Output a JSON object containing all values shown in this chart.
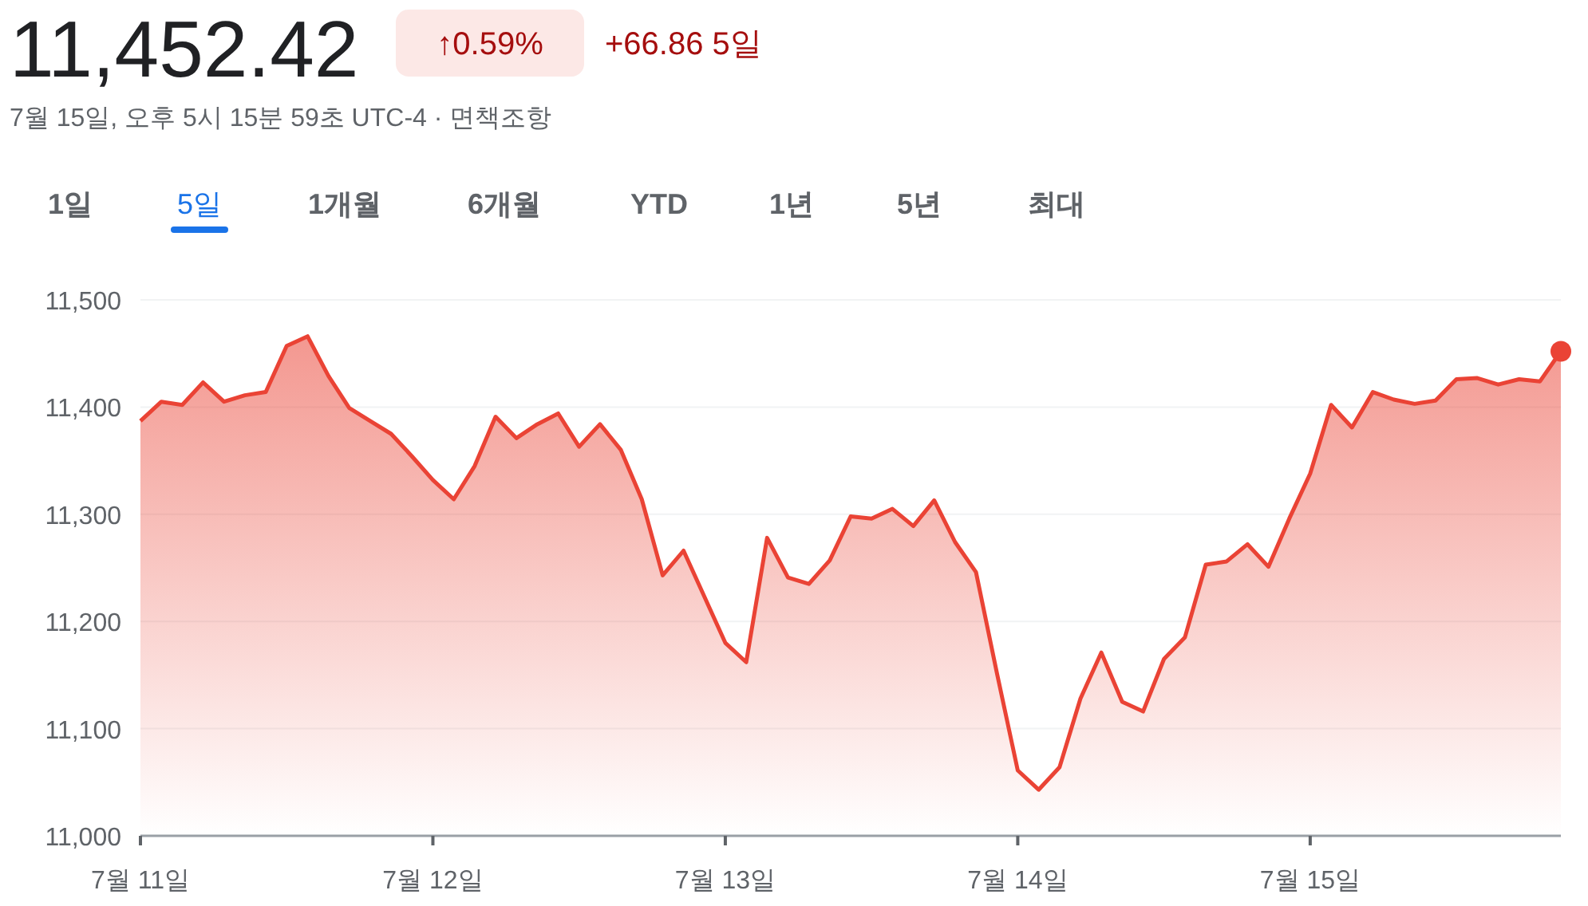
{
  "chart_data": {
    "type": "area",
    "title": "11,452.42",
    "subtitle": "7월 15일, 오후 5시 15분 59초 UTC-4 · 면책조항",
    "annotations": [
      "↑0.59%",
      "+66.86 5일",
      "1일",
      "5일",
      "1개월",
      "6개월",
      "YTD",
      "1년",
      "5년",
      "최대"
    ],
    "categories": [
      "7월 11일",
      null,
      null,
      null,
      null,
      null,
      null,
      null,
      null,
      null,
      null,
      null,
      null,
      null,
      "7월 12일",
      null,
      null,
      null,
      null,
      null,
      null,
      null,
      null,
      null,
      null,
      null,
      null,
      null,
      "7월 13일",
      null,
      null,
      null,
      null,
      null,
      null,
      null,
      null,
      null,
      null,
      null,
      null,
      null,
      "7월 14일",
      null,
      null,
      null,
      null,
      null,
      null,
      null,
      null,
      null,
      null,
      null,
      null,
      null,
      "7월 15일",
      null,
      null,
      null,
      null,
      null,
      null,
      null,
      null,
      null,
      null,
      null,
      null
    ],
    "ylim": [
      11000,
      11500
    ],
    "yticks": [
      {
        "value": 11000,
        "label": "11,000"
      },
      {
        "value": 11100,
        "label": "11,100"
      },
      {
        "value": 11200,
        "label": "11,200"
      },
      {
        "value": 11300,
        "label": "11,300"
      },
      {
        "value": 11400,
        "label": "11,400"
      },
      {
        "value": 11500,
        "label": "11,500"
      }
    ],
    "grid": "y",
    "series": [
      {
        "color": "#ea4335",
        "values": [
          11387,
          11405,
          11402,
          11423,
          11405,
          11411,
          11414,
          11457,
          11466,
          11429,
          11399,
          11387,
          11375,
          11354,
          11332,
          11314,
          11345,
          11391,
          11371,
          11384,
          11394,
          11363,
          11384,
          11360,
          11314,
          11243,
          11266,
          11223,
          11180,
          11162,
          11278,
          11241,
          11235,
          11257,
          11298,
          11296,
          11305,
          11289,
          11313,
          11274,
          11246,
          11152,
          11061,
          11043,
          11064,
          11128,
          11171,
          11125,
          11116,
          11165,
          11185,
          11253,
          11256,
          11272,
          11251,
          11296,
          11338,
          11402,
          11381,
          11414,
          11407,
          11403,
          11406,
          11426,
          11427,
          11421,
          11426,
          11424,
          11452
        ]
      }
    ]
  }
}
